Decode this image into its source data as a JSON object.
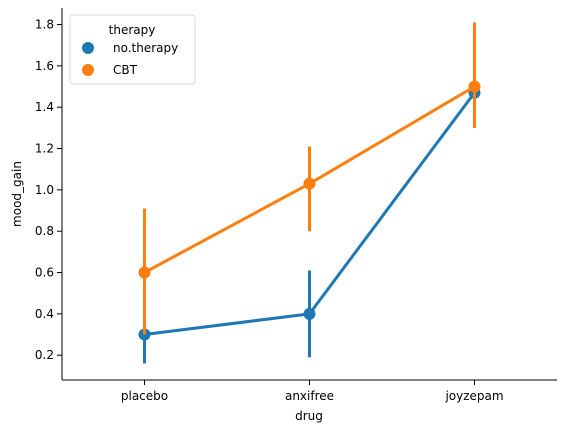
{
  "chart_data": {
    "type": "line",
    "xlabel": "drug",
    "ylabel": "mood_gain",
    "categories": [
      "placebo",
      "anxifree",
      "joyzepam"
    ],
    "ylim": [
      0.08,
      1.88
    ],
    "yticks": [
      "0.2",
      "0.4",
      "0.6",
      "0.8",
      "1.0",
      "1.2",
      "1.4",
      "1.6",
      "1.8"
    ],
    "legend": {
      "title": "therapy",
      "placement": "top-left"
    },
    "series": [
      {
        "name": "no.therapy",
        "color": "#1f77b4",
        "values": [
          0.3,
          0.4,
          1.47
        ],
        "ci_low": [
          0.16,
          0.19,
          1.3
        ],
        "ci_high": [
          0.45,
          0.61,
          1.7
        ]
      },
      {
        "name": "CBT",
        "color": "#ff7f0e",
        "values": [
          0.6,
          1.03,
          1.5
        ],
        "ci_low": [
          0.3,
          0.8,
          1.3
        ],
        "ci_high": [
          0.91,
          1.21,
          1.81
        ]
      }
    ]
  }
}
